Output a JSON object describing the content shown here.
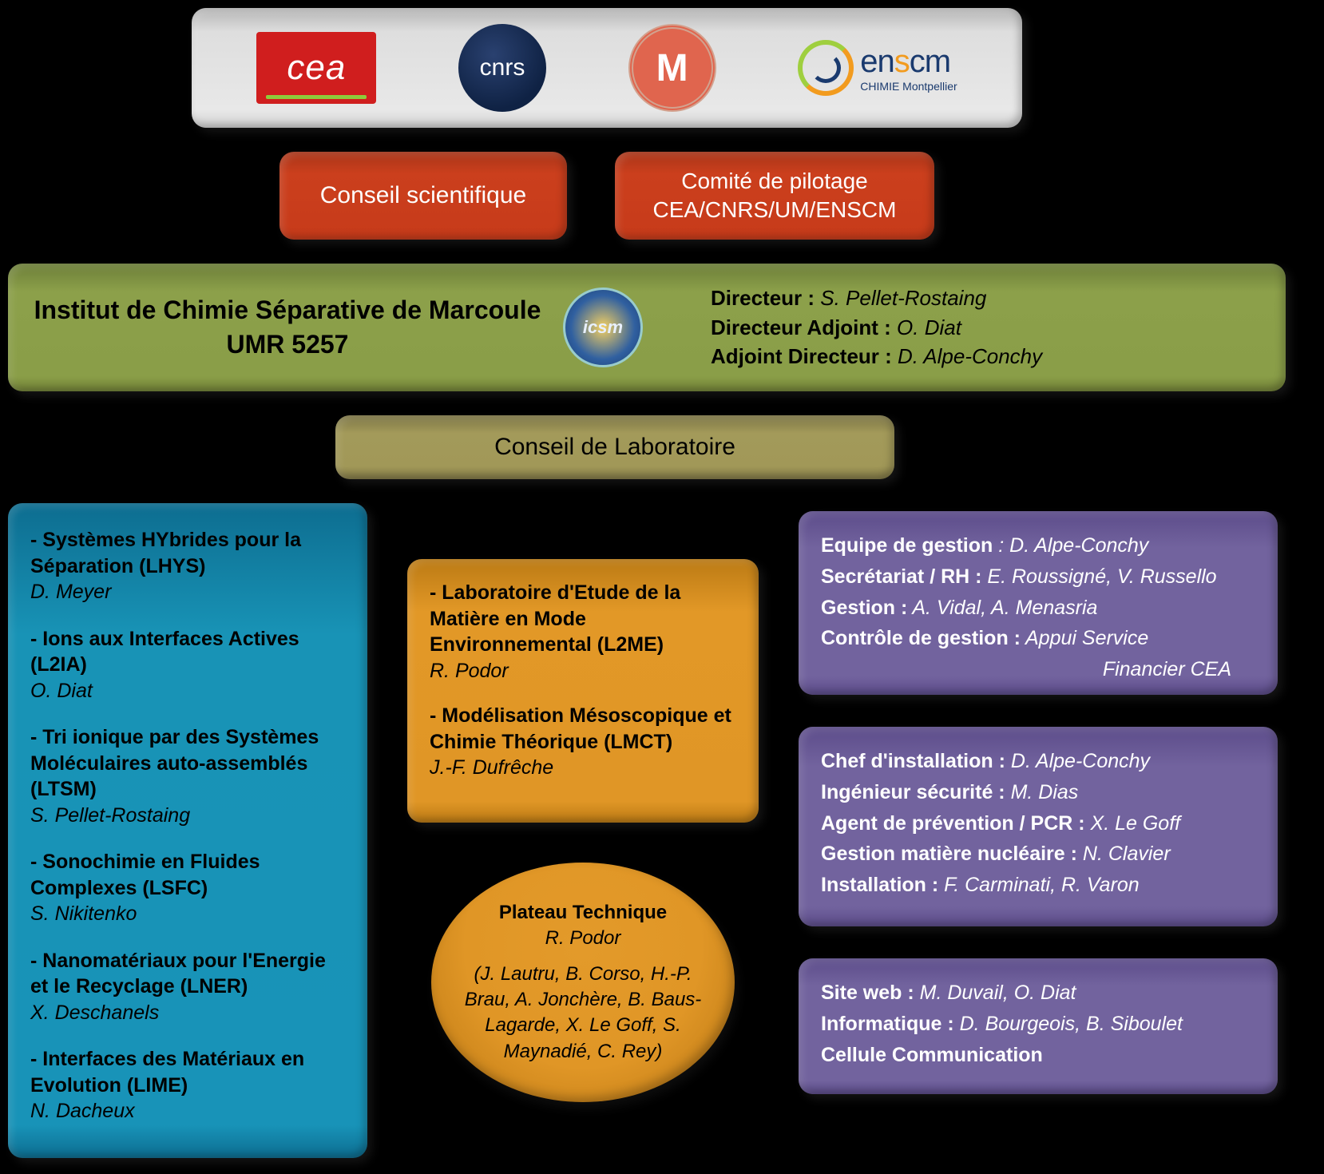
{
  "colors": {
    "background": "#000000",
    "partner_bar": "#e0e0e0",
    "council_red": "#c73b1a",
    "institut_green": "#8a9e48",
    "lab_olive": "#a19858",
    "column_blue": "#1893b6",
    "column_orange": "#e09626",
    "column_purple": "#72639e"
  },
  "partners": {
    "cea": "cea",
    "cnrs": "cnrs",
    "um": "M",
    "enscm_main": "en",
    "enscm_o": "s",
    "enscm_rest": "cm",
    "enscm_sub": "CHIMIE Montpellier"
  },
  "conseil_sci": "Conseil scientifique",
  "comite_pil_l1": "Comité de pilotage",
  "comite_pil_l2": "CEA/CNRS/UM/ENSCM",
  "institut": {
    "title_l1": "Institut de Chimie Séparative de Marcoule",
    "title_l2": "UMR 5257",
    "logo_text": "icsm",
    "dir_lbl": "Directeur :",
    "dir_val": " S. Pellet-Rostaing",
    "adj_lbl": "Directeur Adjoint :",
    "adj_val": " O. Diat",
    "adj2_lbl": "Adjoint Directeur :",
    "adj2_val": " D. Alpe-Conchy"
  },
  "conseil_lab": "Conseil de Laboratoire",
  "blue_items": [
    {
      "title": "- Systèmes HYbrides pour la Séparation  (LHYS)",
      "lead": "D. Meyer"
    },
    {
      "title": "- Ions aux Interfaces Actives (L2IA)",
      "lead": "O. Diat"
    },
    {
      "title": "- Tri ionique par des Systèmes Moléculaires auto-assemblés (LTSM)",
      "lead": "S. Pellet-Rostaing"
    },
    {
      "title": "- Sonochimie en Fluides Complexes (LSFC)",
      "lead": "S. Nikitenko"
    },
    {
      "title": "- Nanomatériaux pour l'Energie et le Recyclage (LNER)",
      "lead": "X. Deschanels"
    },
    {
      "title": "- Interfaces des Matériaux en Evolution (LIME)",
      "lead": "N. Dacheux"
    }
  ],
  "orange_items": [
    {
      "title": "- Laboratoire d'Etude de la Matière en Mode Environnemental (L2ME)",
      "lead": "R. Podor"
    },
    {
      "title": "- Modélisation Mésoscopique et Chimie Théorique (LMCT)",
      "lead": "J.-F. Dufrêche"
    }
  ],
  "plateau": {
    "title": "Plateau Technique",
    "lead": "R. Podor",
    "members": "(J. Lautru, B. Corso, H.-P. Brau, A. Jonchère, B. Baus-Lagarde, X. Le Goff, S. Maynadié, C. Rey)"
  },
  "purple1": [
    {
      "lbl": "Equipe de gestion",
      "val": " :  D. Alpe-Conchy"
    },
    {
      "lbl": "Secrétariat / RH :",
      "val": " E. Roussigné, V. Russello"
    },
    {
      "lbl": "Gestion :",
      "val": " A. Vidal, A. Menasria"
    },
    {
      "lbl": "Contrôle de gestion :",
      "val": " Appui Service Financier CEA"
    }
  ],
  "purple2": [
    {
      "lbl": "Chef d'installation :",
      "val": " D. Alpe-Conchy"
    },
    {
      "lbl": "Ingénieur sécurité :",
      "val": " M. Dias"
    },
    {
      "lbl": "Agent de prévention / PCR :",
      "val": " X. Le Goff"
    },
    {
      "lbl": "Gestion matière nucléaire :",
      "val": " N. Clavier"
    },
    {
      "lbl": "Installation :",
      "val": " F. Carminati, R. Varon"
    }
  ],
  "purple3": [
    {
      "lbl": "Site web :",
      "val": " M. Duvail, O. Diat"
    },
    {
      "lbl": "Informatique :",
      "val": " D. Bourgeois, B. Siboulet"
    },
    {
      "lbl": "Cellule Communication",
      "val": ""
    }
  ]
}
